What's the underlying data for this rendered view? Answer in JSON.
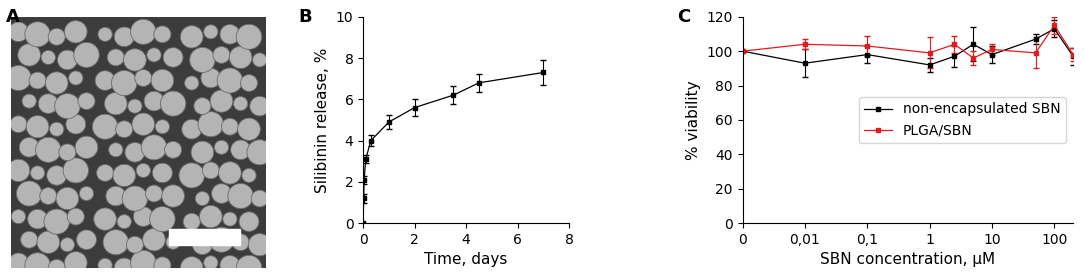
{
  "chart_data": [
    {
      "type": "image",
      "title": "A"
    },
    {
      "type": "line",
      "title": "B",
      "x_label": "Time, days",
      "y_label": "Silibinin release, %",
      "x": [
        0,
        0.02,
        0.04,
        0.1,
        0.3,
        1,
        2,
        3.5,
        4.5,
        7
      ],
      "series": [
        {
          "name": "Silibinin release",
          "color": "#000000",
          "marker": "square",
          "values": [
            0,
            1.2,
            2.1,
            3.1,
            4.0,
            4.9,
            5.6,
            6.2,
            6.8,
            7.3
          ],
          "errors": [
            0,
            0.2,
            0.2,
            0.2,
            0.25,
            0.35,
            0.4,
            0.45,
            0.45,
            0.6
          ]
        }
      ],
      "xlim": [
        0,
        8
      ],
      "xticks": [
        0,
        2,
        4,
        6,
        8
      ],
      "ylim": [
        0,
        10
      ],
      "yticks": [
        0,
        2,
        4,
        6,
        8,
        10
      ]
    },
    {
      "type": "line",
      "title": "C",
      "x_label": "SBN concentration, µM",
      "y_label": "% viability",
      "log": "x",
      "legend": "center right",
      "x": [
        0,
        0.01,
        0.1,
        1,
        2.5,
        5,
        10,
        50,
        100,
        200
      ],
      "series": [
        {
          "name": "non-encapsulated SBN",
          "color": "#000000",
          "marker": "square",
          "values": [
            100,
            93,
            98,
            92,
            97,
            104,
            98,
            107,
            113,
            97
          ],
          "errors": [
            0,
            8,
            5,
            4,
            6,
            10,
            5,
            3,
            5,
            5
          ]
        },
        {
          "name": "PLGA/SBN",
          "color": "#e41a1c",
          "marker": "square",
          "values": [
            100,
            104,
            103,
            99,
            104,
            96,
            101,
            99,
            115,
            98
          ],
          "errors": [
            0,
            3,
            6,
            9,
            5,
            4,
            3,
            9,
            5,
            4
          ]
        }
      ],
      "xlim": [
        0,
        200
      ],
      "xticks": [
        0,
        {
          "value": 0.01,
          "label": "0,01"
        },
        {
          "value": 0.1,
          "label": "0,1"
        },
        1,
        10,
        100
      ],
      "ylim": [
        0,
        120
      ],
      "yticks": [
        0,
        20,
        40,
        60,
        80,
        100,
        120
      ]
    }
  ]
}
